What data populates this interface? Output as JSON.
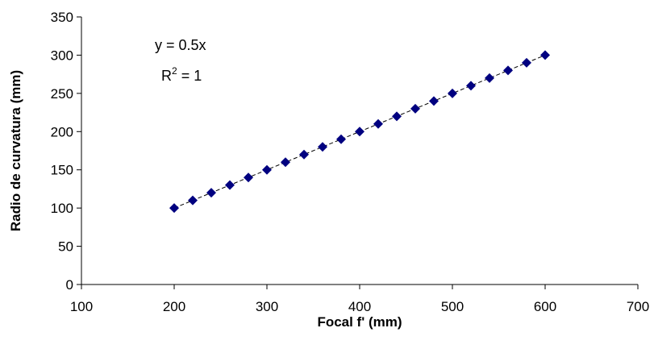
{
  "chart_data": {
    "type": "scatter",
    "title": "",
    "xlabel": "Focal f' (mm)",
    "ylabel": "Radio de curvatura (mm)",
    "xlim": [
      100,
      700
    ],
    "ylim": [
      0,
      350
    ],
    "x_ticks": [
      100,
      200,
      300,
      400,
      500,
      600,
      700
    ],
    "y_ticks": [
      0,
      50,
      100,
      150,
      200,
      250,
      300,
      350
    ],
    "grid": false,
    "legend": "none",
    "series": [
      {
        "marker": "diamond",
        "color": "#000080",
        "x": [
          200,
          220,
          240,
          260,
          280,
          300,
          320,
          340,
          360,
          380,
          400,
          420,
          440,
          460,
          480,
          500,
          520,
          540,
          560,
          580,
          600
        ],
        "y": [
          100,
          110,
          120,
          130,
          140,
          150,
          160,
          170,
          180,
          190,
          200,
          210,
          220,
          230,
          240,
          250,
          260,
          270,
          280,
          290,
          300
        ]
      }
    ],
    "trendline": {
      "style": "dashed",
      "color": "#000000",
      "slope": 0.5,
      "intercept": 0,
      "x_range": [
        200,
        600
      ]
    },
    "annotations": {
      "equation": "y = 0.5x",
      "r2_prefix": "R",
      "r2_sup": "2",
      "r2_suffix": " = 1"
    }
  }
}
